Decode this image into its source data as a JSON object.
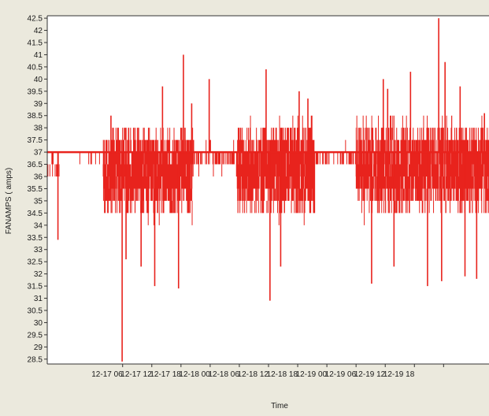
{
  "chart_data": {
    "type": "line",
    "title": "",
    "xlabel": "Time",
    "ylabel": "FANAMPS ( amps)",
    "ylim": [
      28.3,
      42.6
    ],
    "yticks": [
      28.5,
      29,
      29.5,
      30,
      30.5,
      31,
      31.5,
      32,
      32.5,
      33,
      33.5,
      34,
      34.5,
      35,
      35.5,
      36,
      36.5,
      37,
      37.5,
      38,
      38.5,
      39,
      39.5,
      40,
      40.5,
      41,
      41.5,
      42,
      42.5
    ],
    "ytick_labels": [
      "28.5",
      "29",
      "29.5",
      "30",
      "30.5",
      "31",
      "31.5",
      "32",
      "32.5",
      "33",
      "33.5",
      "34",
      "34.5",
      "35",
      "35.5",
      "36",
      "36.5",
      "37",
      "37.5",
      "38",
      "38.5",
      "39",
      "39.5",
      "40",
      "40.5",
      "41",
      "41.5",
      "42",
      "42.5"
    ],
    "x_unit": "hours",
    "xlim": [
      -9.5,
      81.5
    ],
    "xticks": [
      6,
      12,
      18,
      24,
      30,
      36,
      42,
      48,
      54,
      60,
      66,
      72
    ],
    "xtick_labels": [
      "12-17 06",
      "12-17 12",
      "12-17 18",
      "12-18 00",
      "12-18 06",
      "12-18 12",
      "12-18 18",
      "12-19 00",
      "12-19 06",
      "12-19 12",
      "12-19 18",
      ""
    ],
    "grid": false,
    "series_color": "#e8231d",
    "baseline": 37,
    "segments": [
      {
        "from": -9.5,
        "to": -7.0,
        "mid": 36.5,
        "spread": 0.5,
        "density": 1.2
      },
      {
        "from": -7.0,
        "to": -3.0,
        "mid": 37.0,
        "spread": 0.15,
        "density": 0.6
      },
      {
        "from": -3.0,
        "to": 2.0,
        "mid": 36.9,
        "spread": 0.3,
        "density": 0.8
      },
      {
        "from": 2.0,
        "to": 20.5,
        "mid": 36.2,
        "spread": 1.5,
        "density": 5.0
      },
      {
        "from": 20.5,
        "to": 29.5,
        "mid": 36.8,
        "spread": 0.5,
        "density": 1.4
      },
      {
        "from": 29.5,
        "to": 45.5,
        "mid": 36.3,
        "spread": 1.6,
        "density": 5.0
      },
      {
        "from": 45.5,
        "to": 54.0,
        "mid": 36.8,
        "spread": 0.4,
        "density": 1.2
      },
      {
        "from": 54.0,
        "to": 81.5,
        "mid": 36.4,
        "spread": 1.6,
        "density": 5.0
      }
    ],
    "spikes": [
      {
        "x": -7.3,
        "y": 33.4
      },
      {
        "x": 3.6,
        "y": 38.5
      },
      {
        "x": 5.9,
        "y": 28.4
      },
      {
        "x": 6.7,
        "y": 32.6
      },
      {
        "x": 9.8,
        "y": 32.3
      },
      {
        "x": 12.6,
        "y": 31.5
      },
      {
        "x": 14.2,
        "y": 39.7
      },
      {
        "x": 17.5,
        "y": 31.4
      },
      {
        "x": 18.5,
        "y": 41.0
      },
      {
        "x": 20.2,
        "y": 39.0
      },
      {
        "x": 23.8,
        "y": 40.0
      },
      {
        "x": 35.5,
        "y": 40.4
      },
      {
        "x": 36.3,
        "y": 30.9
      },
      {
        "x": 38.5,
        "y": 32.3
      },
      {
        "x": 42.3,
        "y": 39.5
      },
      {
        "x": 44.1,
        "y": 39.2
      },
      {
        "x": 57.2,
        "y": 31.6
      },
      {
        "x": 59.6,
        "y": 40.0
      },
      {
        "x": 60.5,
        "y": 39.6
      },
      {
        "x": 61.8,
        "y": 32.3
      },
      {
        "x": 65.2,
        "y": 40.3
      },
      {
        "x": 68.7,
        "y": 31.5
      },
      {
        "x": 71.0,
        "y": 42.5
      },
      {
        "x": 71.6,
        "y": 31.7
      },
      {
        "x": 72.3,
        "y": 40.7
      },
      {
        "x": 75.4,
        "y": 39.7
      },
      {
        "x": 76.4,
        "y": 31.9
      },
      {
        "x": 78.8,
        "y": 31.8
      },
      {
        "x": 80.4,
        "y": 38.6
      }
    ]
  }
}
